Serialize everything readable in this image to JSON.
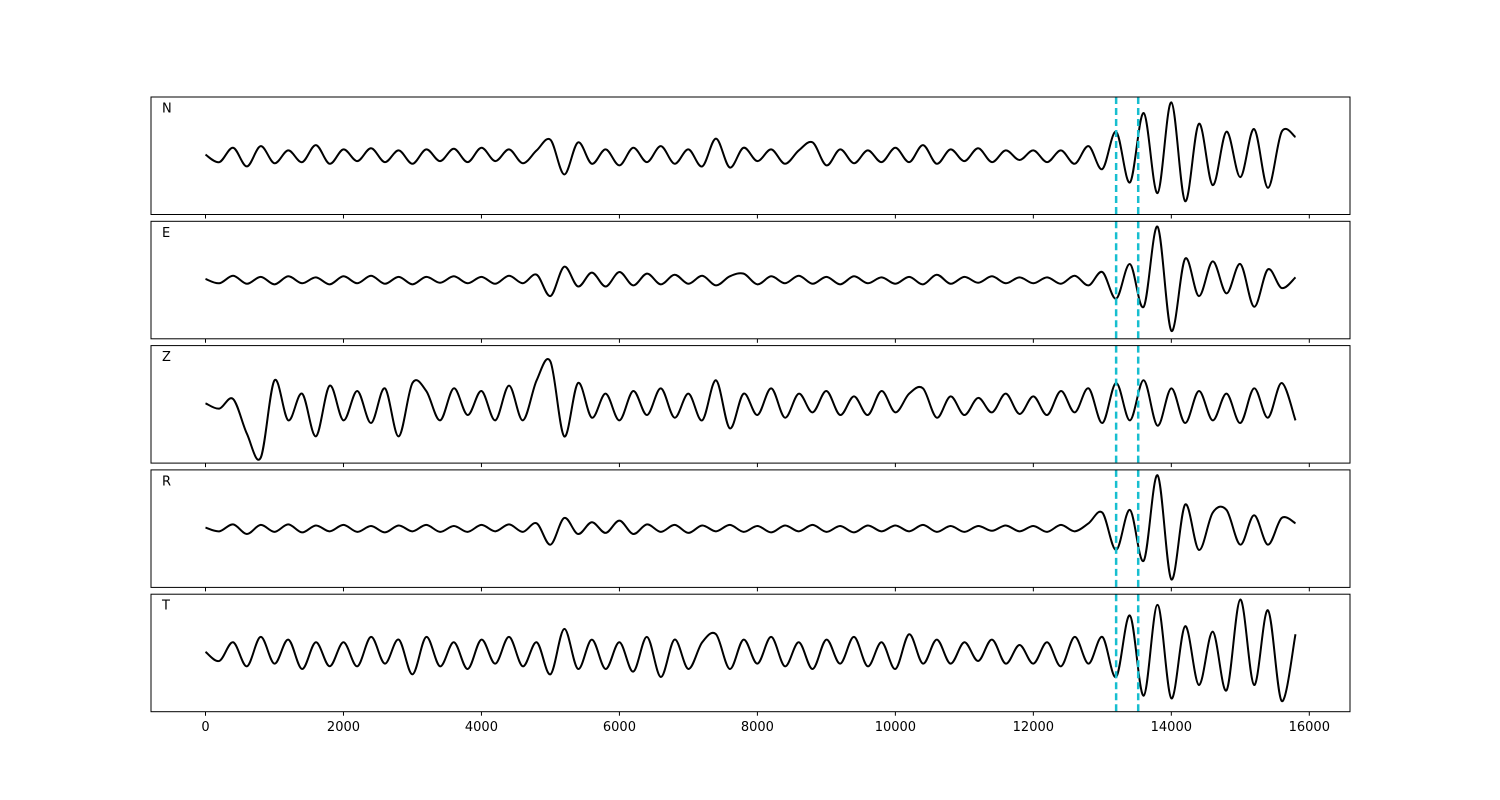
{
  "chart_data": [
    {
      "type": "line",
      "label": "N",
      "x": [
        0,
        200,
        400,
        600,
        800,
        1000,
        1200,
        1400,
        1600,
        1800,
        2000,
        2200,
        2400,
        2600,
        2800,
        3000,
        3200,
        3400,
        3600,
        3800,
        4000,
        4200,
        4400,
        4600,
        4800,
        5000,
        5200,
        5400,
        5600,
        5800,
        6000,
        6200,
        6400,
        6600,
        6800,
        7000,
        7200,
        7400,
        7600,
        7800,
        8000,
        8200,
        8400,
        8600,
        8800,
        9000,
        9200,
        9400,
        9600,
        9800,
        10000,
        10200,
        10400,
        10600,
        10800,
        11000,
        11200,
        11400,
        11600,
        11800,
        12000,
        12200,
        12400,
        12600,
        12800,
        13000,
        13200,
        13400,
        13600,
        13800,
        14000,
        14200,
        14400,
        14600,
        14800,
        15000,
        15200,
        15400,
        15600,
        15800
      ],
      "series": [
        {
          "color": "#000000",
          "values": [
            0.02,
            -0.12,
            0.15,
            -0.2,
            0.18,
            -0.14,
            0.1,
            -0.12,
            0.2,
            -0.15,
            0.12,
            -0.1,
            0.14,
            -0.12,
            0.1,
            -0.15,
            0.12,
            -0.1,
            0.13,
            -0.12,
            0.15,
            -0.1,
            0.12,
            -0.14,
            0.1,
            0.3,
            -0.35,
            0.25,
            -0.15,
            0.12,
            -0.18,
            0.15,
            -0.12,
            0.18,
            -0.15,
            0.12,
            -0.2,
            0.32,
            -0.22,
            0.15,
            -0.1,
            0.12,
            -0.15,
            0.1,
            0.25,
            -0.18,
            0.12,
            -0.14,
            0.1,
            -0.12,
            0.15,
            -0.12,
            0.2,
            -0.15,
            0.12,
            -0.1,
            0.14,
            -0.12,
            0.1,
            -0.08,
            0.1,
            -0.12,
            0.1,
            -0.15,
            0.18,
            -0.25,
            0.45,
            -0.5,
            0.8,
            -0.7,
            1.0,
            -0.85,
            0.6,
            -0.55,
            0.45,
            -0.4,
            0.5,
            -0.6,
            0.45,
            0.35
          ]
        }
      ],
      "xlim": [
        -790,
        16590
      ],
      "xticks": [
        0,
        2000,
        4000,
        6000,
        8000,
        10000,
        12000,
        14000,
        16000
      ],
      "ylim": [
        -1.1,
        1.1
      ],
      "vlines": [
        13200,
        13520
      ],
      "vline_color": "#17becf",
      "tick_labels": false
    },
    {
      "type": "line",
      "label": "E",
      "x": [
        0,
        200,
        400,
        600,
        800,
        1000,
        1200,
        1400,
        1600,
        1800,
        2000,
        2200,
        2400,
        2600,
        2800,
        3000,
        3200,
        3400,
        3600,
        3800,
        4000,
        4200,
        4400,
        4600,
        4800,
        5000,
        5200,
        5400,
        5600,
        5800,
        6000,
        6200,
        6400,
        6600,
        6800,
        7000,
        7200,
        7400,
        7600,
        7800,
        8000,
        8200,
        8400,
        8600,
        8800,
        9000,
        9200,
        9400,
        9600,
        9800,
        10000,
        10200,
        10400,
        10600,
        10800,
        11000,
        11200,
        11400,
        11600,
        11800,
        12000,
        12200,
        12400,
        12600,
        12800,
        13000,
        13200,
        13400,
        13600,
        13800,
        14000,
        14200,
        14400,
        14600,
        14800,
        15000,
        15200,
        15400,
        15600,
        15800
      ],
      "series": [
        {
          "color": "#000000",
          "values": [
            0.02,
            -0.06,
            0.08,
            -0.07,
            0.06,
            -0.08,
            0.07,
            -0.06,
            0.05,
            -0.08,
            0.07,
            -0.06,
            0.08,
            -0.07,
            0.06,
            -0.08,
            0.06,
            -0.05,
            0.07,
            -0.06,
            0.06,
            -0.07,
            0.08,
            -0.06,
            0.1,
            -0.3,
            0.25,
            -0.12,
            0.14,
            -0.12,
            0.15,
            -0.1,
            0.12,
            -0.08,
            0.1,
            -0.07,
            0.08,
            -0.1,
            0.07,
            0.12,
            -0.08,
            0.07,
            -0.06,
            0.08,
            -0.07,
            0.06,
            -0.08,
            0.07,
            -0.06,
            0.05,
            -0.07,
            0.06,
            -0.08,
            0.1,
            -0.07,
            0.06,
            -0.05,
            0.07,
            -0.06,
            0.05,
            -0.06,
            0.05,
            -0.07,
            0.08,
            -0.1,
            0.15,
            -0.35,
            0.3,
            -0.5,
            1.0,
            -0.95,
            0.4,
            -0.3,
            0.35,
            -0.25,
            0.3,
            -0.5,
            0.2,
            -0.15,
            0.05
          ]
        }
      ],
      "xlim": [
        -790,
        16590
      ],
      "xticks": [
        0,
        2000,
        4000,
        6000,
        8000,
        10000,
        12000,
        14000,
        16000
      ],
      "ylim": [
        -1.1,
        1.1
      ],
      "vlines": [
        13200,
        13520
      ],
      "vline_color": "#17becf",
      "tick_labels": false
    },
    {
      "type": "line",
      "label": "Z",
      "x": [
        0,
        200,
        400,
        600,
        800,
        1000,
        1200,
        1400,
        1600,
        1800,
        2000,
        2200,
        2400,
        2600,
        2800,
        3000,
        3200,
        3400,
        3600,
        3800,
        4000,
        4200,
        4400,
        4600,
        4800,
        5000,
        5200,
        5400,
        5600,
        5800,
        6000,
        6200,
        6400,
        6600,
        6800,
        7000,
        7200,
        7400,
        7600,
        7800,
        8000,
        8200,
        8400,
        8600,
        8800,
        9000,
        9200,
        9400,
        9600,
        9800,
        10000,
        10200,
        10400,
        10600,
        10800,
        11000,
        11200,
        11400,
        11600,
        11800,
        12000,
        12200,
        12400,
        12600,
        12800,
        13000,
        13200,
        13400,
        13600,
        13800,
        14000,
        14200,
        14400,
        14600,
        14800,
        15000,
        15200,
        15400,
        15600,
        15800
      ],
      "series": [
        {
          "color": "#000000",
          "values": [
            0.02,
            -0.08,
            0.1,
            -0.55,
            -1.0,
            0.45,
            -0.3,
            0.2,
            -0.6,
            0.35,
            -0.3,
            0.25,
            -0.35,
            0.3,
            -0.6,
            0.4,
            0.25,
            -0.3,
            0.3,
            -0.2,
            0.25,
            -0.3,
            0.35,
            -0.3,
            0.45,
            0.8,
            -0.6,
            0.4,
            -0.25,
            0.2,
            -0.3,
            0.25,
            -0.2,
            0.3,
            -0.25,
            0.2,
            -0.3,
            0.45,
            -0.45,
            0.2,
            -0.2,
            0.3,
            -0.25,
            0.2,
            -0.15,
            0.25,
            -0.2,
            0.15,
            -0.2,
            0.25,
            -0.15,
            0.2,
            0.3,
            -0.25,
            0.15,
            -0.2,
            0.12,
            -0.15,
            0.2,
            -0.18,
            0.15,
            -0.2,
            0.25,
            -0.15,
            0.3,
            -0.35,
            0.4,
            -0.3,
            0.45,
            -0.4,
            0.3,
            -0.35,
            0.25,
            -0.3,
            0.2,
            -0.35,
            0.3,
            -0.25,
            0.4,
            -0.3
          ]
        }
      ],
      "xlim": [
        -790,
        16590
      ],
      "xticks": [
        0,
        2000,
        4000,
        6000,
        8000,
        10000,
        12000,
        14000,
        16000
      ],
      "ylim": [
        -1.1,
        1.1
      ],
      "vlines": [
        13200,
        13520
      ],
      "vline_color": "#17becf",
      "tick_labels": false
    },
    {
      "type": "line",
      "label": "R",
      "x": [
        0,
        200,
        400,
        600,
        800,
        1000,
        1200,
        1400,
        1600,
        1800,
        2000,
        2200,
        2400,
        2600,
        2800,
        3000,
        3200,
        3400,
        3600,
        3800,
        4000,
        4200,
        4400,
        4600,
        4800,
        5000,
        5200,
        5400,
        5600,
        5800,
        6000,
        6200,
        6400,
        6600,
        6800,
        7000,
        7200,
        7400,
        7600,
        7800,
        8000,
        8200,
        8400,
        8600,
        8800,
        9000,
        9200,
        9400,
        9600,
        9800,
        10000,
        10200,
        10400,
        10600,
        10800,
        11000,
        11200,
        11400,
        11600,
        11800,
        12000,
        12200,
        12400,
        12600,
        12800,
        13000,
        13200,
        13400,
        13600,
        13800,
        14000,
        14200,
        14400,
        14600,
        14800,
        15000,
        15200,
        15400,
        15600,
        15800
      ],
      "series": [
        {
          "color": "#000000",
          "values": [
            0.02,
            -0.05,
            0.08,
            -0.1,
            0.07,
            -0.06,
            0.08,
            -0.07,
            0.06,
            -0.05,
            0.07,
            -0.06,
            0.05,
            -0.07,
            0.06,
            -0.05,
            0.07,
            -0.06,
            0.05,
            -0.06,
            0.07,
            -0.05,
            0.08,
            -0.06,
            0.1,
            -0.3,
            0.2,
            -0.1,
            0.12,
            -0.08,
            0.15,
            -0.1,
            0.08,
            -0.06,
            0.07,
            -0.08,
            0.06,
            -0.05,
            0.07,
            -0.06,
            0.05,
            -0.07,
            0.06,
            -0.05,
            0.07,
            -0.06,
            0.05,
            -0.07,
            0.06,
            -0.05,
            0.06,
            -0.05,
            0.07,
            -0.06,
            0.05,
            -0.06,
            0.05,
            -0.04,
            0.06,
            -0.05,
            0.05,
            -0.06,
            0.07,
            -0.05,
            0.1,
            0.3,
            -0.4,
            0.35,
            -0.6,
            1.0,
            -0.95,
            0.45,
            -0.4,
            0.3,
            0.35,
            -0.3,
            0.25,
            -0.3,
            0.2,
            0.1
          ]
        }
      ],
      "xlim": [
        -790,
        16590
      ],
      "xticks": [
        0,
        2000,
        4000,
        6000,
        8000,
        10000,
        12000,
        14000,
        16000
      ],
      "ylim": [
        -1.1,
        1.1
      ],
      "vlines": [
        13200,
        13520
      ],
      "vline_color": "#17becf",
      "tick_labels": false
    },
    {
      "type": "line",
      "label": "T",
      "x": [
        0,
        200,
        400,
        600,
        800,
        1000,
        1200,
        1400,
        1600,
        1800,
        2000,
        2200,
        2400,
        2600,
        2800,
        3000,
        3200,
        3400,
        3600,
        3800,
        4000,
        4200,
        4400,
        4600,
        4800,
        5000,
        5200,
        5400,
        5600,
        5800,
        6000,
        6200,
        6400,
        6600,
        6800,
        7000,
        7200,
        7400,
        7600,
        7800,
        8000,
        8200,
        8400,
        8600,
        8800,
        9000,
        9200,
        9400,
        9600,
        9800,
        10000,
        10200,
        10400,
        10600,
        10800,
        11000,
        11200,
        11400,
        11600,
        11800,
        12000,
        12200,
        12400,
        12600,
        12800,
        13000,
        13200,
        13400,
        13600,
        13800,
        14000,
        14200,
        14400,
        14600,
        14800,
        15000,
        15200,
        15400,
        15600,
        15800
      ],
      "series": [
        {
          "color": "#000000",
          "values": [
            0.02,
            -0.15,
            0.2,
            -0.25,
            0.3,
            -0.2,
            0.25,
            -0.3,
            0.2,
            -0.25,
            0.2,
            -0.25,
            0.3,
            -0.2,
            0.25,
            -0.4,
            0.3,
            -0.25,
            0.2,
            -0.3,
            0.25,
            -0.2,
            0.3,
            -0.25,
            0.2,
            -0.4,
            0.45,
            -0.3,
            0.25,
            -0.3,
            0.2,
            -0.35,
            0.3,
            -0.45,
            0.25,
            -0.3,
            0.2,
            0.35,
            -0.3,
            0.25,
            -0.2,
            0.3,
            -0.25,
            0.2,
            -0.3,
            0.25,
            -0.2,
            0.3,
            -0.25,
            0.2,
            -0.3,
            0.35,
            -0.2,
            0.25,
            -0.2,
            0.2,
            -0.15,
            0.25,
            -0.2,
            0.15,
            -0.2,
            0.2,
            -0.25,
            0.3,
            -0.2,
            0.3,
            -0.45,
            0.7,
            -0.8,
            0.9,
            -0.85,
            0.5,
            -0.6,
            0.4,
            -0.7,
            1.0,
            -0.6,
            0.8,
            -0.9,
            0.35
          ]
        }
      ],
      "xlim": [
        -790,
        16590
      ],
      "xticks": [
        0,
        2000,
        4000,
        6000,
        8000,
        10000,
        12000,
        14000,
        16000
      ],
      "ylim": [
        -1.1,
        1.1
      ],
      "vlines": [
        13200,
        13520
      ],
      "vline_color": "#17becf",
      "tick_labels": true
    }
  ]
}
